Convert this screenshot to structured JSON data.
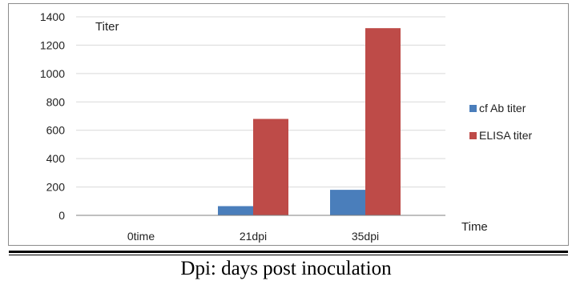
{
  "chart_data": {
    "type": "bar",
    "title": "",
    "ylabel": "Titer",
    "xlabel": "Time",
    "ylim": [
      0,
      1400
    ],
    "yticks": [
      0,
      200,
      400,
      600,
      800,
      1000,
      1200,
      1400
    ],
    "categories": [
      "0time",
      "21dpi",
      "35dpi"
    ],
    "series": [
      {
        "name": "cf Ab titer",
        "color": "#4a7ebb",
        "values": [
          0,
          65,
          180
        ]
      },
      {
        "name": "ELISA titer",
        "color": "#be4b48",
        "values": [
          0,
          680,
          1320
        ]
      }
    ],
    "grid": true,
    "legend": "right"
  },
  "caption": "Dpi: days post inoculation"
}
